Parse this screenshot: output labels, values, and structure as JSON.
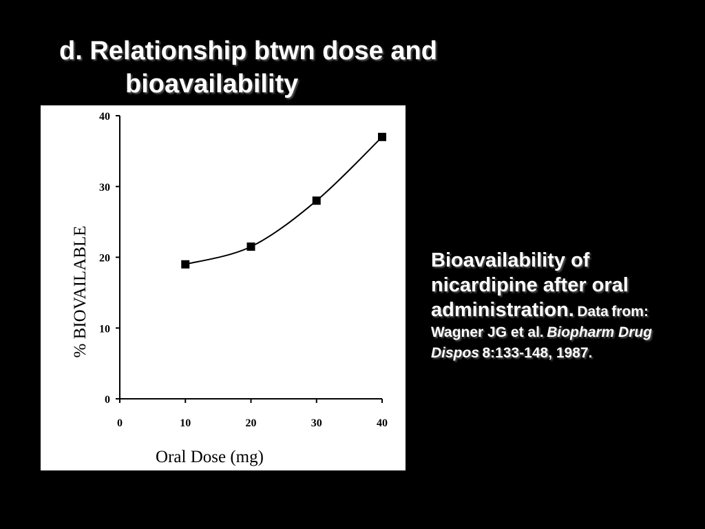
{
  "slide": {
    "title_line1": "d. Relationship btwn dose and",
    "title_line2": "bioavailability"
  },
  "caption": {
    "main": "Bioavailability of nicardipine after oral administration.",
    "data_prefix": "Data",
    "from_text": "from: Wagner JG et al.",
    "journal": "Biopharm Drug Dispos",
    "citation_tail": "8:133-148, 1987."
  },
  "colors": {
    "background": "#000000",
    "text": "#ffffff",
    "chart_background": "#ffffff",
    "series": "#000000"
  },
  "chart_data": {
    "type": "line",
    "title": "",
    "xlabel": "Oral Dose (mg)",
    "ylabel": "% BIOVAILABLE",
    "xlim": [
      0,
      40
    ],
    "ylim": [
      0,
      40
    ],
    "xticks": [
      "0",
      "10",
      "20",
      "30",
      "40"
    ],
    "yticks": [
      "0",
      "10",
      "20",
      "30",
      "40"
    ],
    "grid": false,
    "legend": "none",
    "marker": "square",
    "smooth": true,
    "series": [
      {
        "x": [
          10,
          20,
          30,
          40
        ],
        "y": [
          19,
          21.5,
          28,
          37
        ]
      }
    ]
  }
}
